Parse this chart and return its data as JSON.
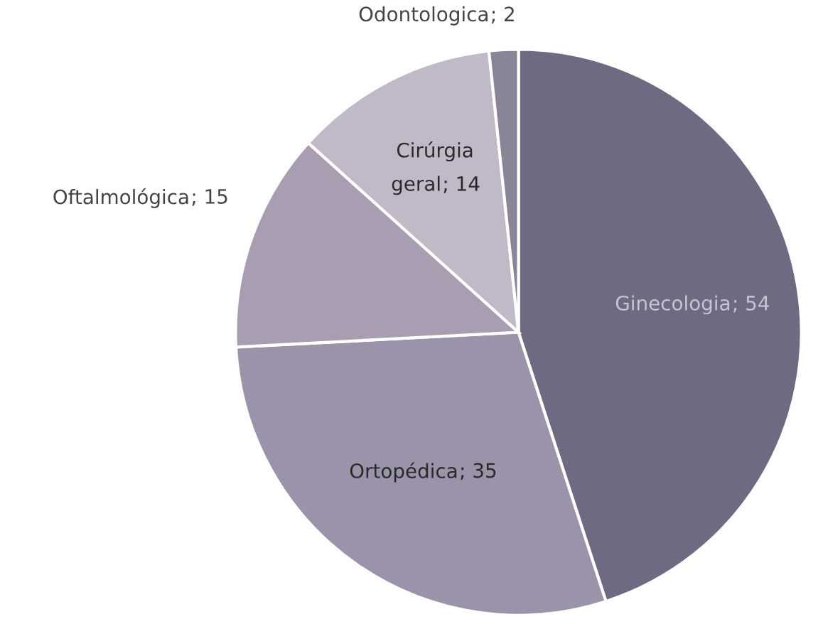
{
  "chart_data": {
    "type": "pie",
    "categories": [
      "Ginecologia",
      "Ortopédica",
      "Oftalmológica",
      "Cirúrgia geral",
      "Odontologica"
    ],
    "values": [
      54,
      35,
      15,
      14,
      2
    ],
    "colors": [
      "#6f6a82",
      "#9a93a9",
      "#a99db2",
      "#c0b9c8",
      "#8a8596"
    ],
    "value_labels": [
      "; 54",
      "; 35",
      "; 15",
      "; 14",
      "; 2"
    ]
  }
}
